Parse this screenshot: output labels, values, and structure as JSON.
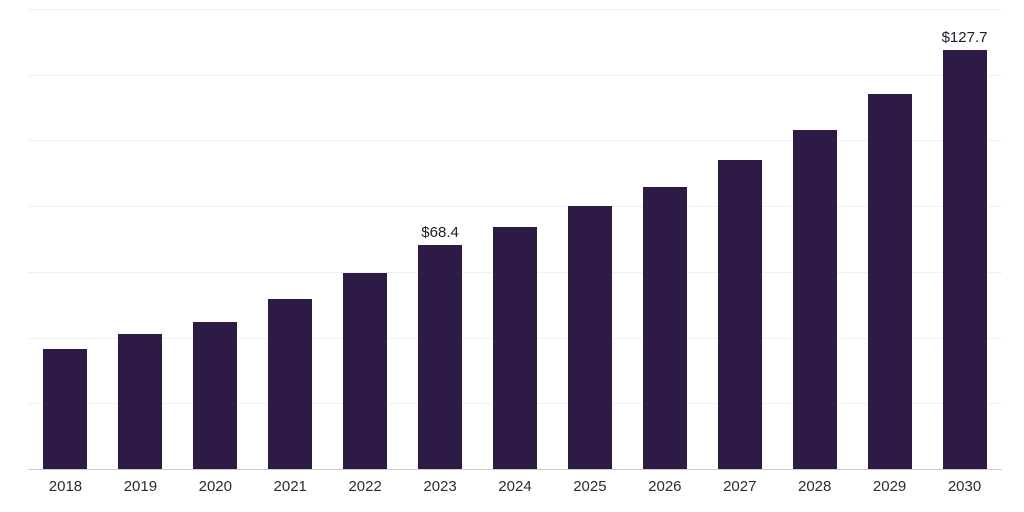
{
  "chart": {
    "accent_color": "#2d1a45",
    "gridline_color": "#f1eff4",
    "axis_line_color": "#cccccc"
  },
  "chart_data": {
    "type": "bar",
    "title": "",
    "xlabel": "",
    "ylabel": "",
    "categories": [
      "2018",
      "2019",
      "2020",
      "2021",
      "2022",
      "2023",
      "2024",
      "2025",
      "2026",
      "2027",
      "2028",
      "2029",
      "2030"
    ],
    "values": [
      36.9,
      41.3,
      45.2,
      52.0,
      60.1,
      68.4,
      74.1,
      80.3,
      86.2,
      94.3,
      103.5,
      114.5,
      127.7
    ],
    "data_labels": [
      "",
      "",
      "",
      "",
      "",
      "$68.4",
      "",
      "",
      "",
      "",
      "",
      "",
      "$127.7"
    ],
    "ylim": [
      0,
      140
    ],
    "gridline_step": 20,
    "grid": true,
    "legend": "none",
    "bar_color": "#2d1a45"
  }
}
